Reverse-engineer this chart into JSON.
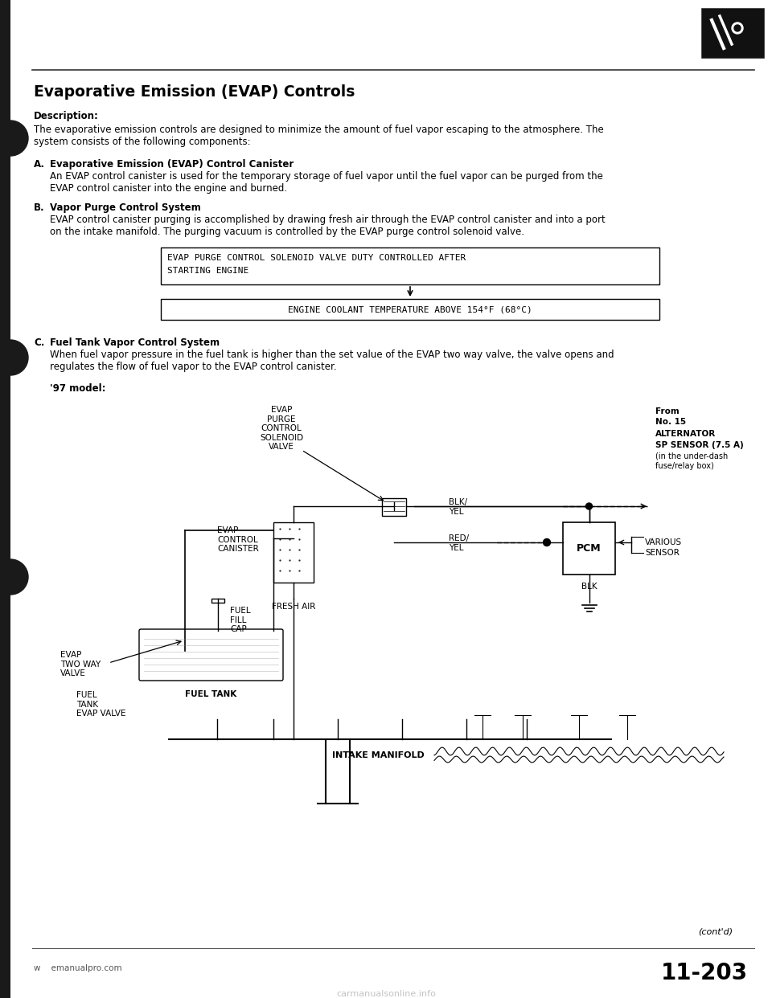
{
  "title": "Evaporative Emission (EVAP) Controls",
  "description_label": "Description:",
  "description_text": "The evaporative emission controls are designed to minimize the amount of fuel vapor escaping to the atmosphere. The\nsystem consists of the following components:",
  "section_A_letter": "A.",
  "section_A_title": "Evaporative Emission (EVAP) Control Canister",
  "section_A_text": "An EVAP control canister is used for the temporary storage of fuel vapor until the fuel vapor can be purged from the\nEVAP control canister into the engine and burned.",
  "section_B_letter": "B.",
  "section_B_title": "Vapor Purge Control System",
  "section_B_text": "EVAP control canister purging is accomplished by drawing fresh air through the EVAP control canister and into a port\non the intake manifold. The purging vacuum is controlled by the EVAP purge control solenoid valve.",
  "box1_line1": "EVAP PURGE CONTROL SOLENOID VALVE DUTY CONTROLLED AFTER",
  "box1_line2": "STARTING ENGINE",
  "box2_text": "ENGINE COOLANT TEMPERATURE ABOVE 154°F (68°C)",
  "section_C_letter": "C.",
  "section_C_title": "Fuel Tank Vapor Control System",
  "section_C_text": "When fuel vapor pressure in the fuel tank is higher than the set value of the EVAP two way valve, the valve opens and\nregulates the flow of fuel vapor to the EVAP control canister.",
  "model_label": "'97 model:",
  "lbl_evap_purge": "EVAP\nPURGE\nCONTROL\nSOLENOID\nVALVE",
  "lbl_evap_canister": "EVAP\nCONTROL\nCANISTER",
  "lbl_fresh_air": "FRESH AIR",
  "lbl_fuel_fill_cap": "FUEL\nFILL\nCAP",
  "lbl_evap_two_way": "EVAP\nTWO WAY\nVALVE",
  "lbl_fuel_tank": "FUEL TANK",
  "lbl_fuel_tank_evap": "FUEL\nTANK\nEVAP VALVE",
  "lbl_blk_yel": "BLK/\nYEL",
  "lbl_red_yel": "RED/\nYEL",
  "lbl_blk": "BLK",
  "lbl_from": "From",
  "lbl_no15": "No. 15",
  "lbl_alternator": "ALTERNATOR",
  "lbl_sp_sensor": "SP SENSOR (7.5 A)",
  "lbl_under_dash": "(in the under-dash",
  "lbl_fuse_relay": "fuse/relay box)",
  "lbl_pcm": "PCM",
  "lbl_various": "VARIOUS",
  "lbl_sensor": "SENSOR",
  "lbl_intake_manifold": "INTAKE MANIFOLD",
  "footer_left": "w    emanualpro.com",
  "footer_right": "11-203",
  "footer_watermark": "carmanualsonline.info",
  "contd": "(cont'd)",
  "bg_color": "#ffffff",
  "text_color": "#000000"
}
